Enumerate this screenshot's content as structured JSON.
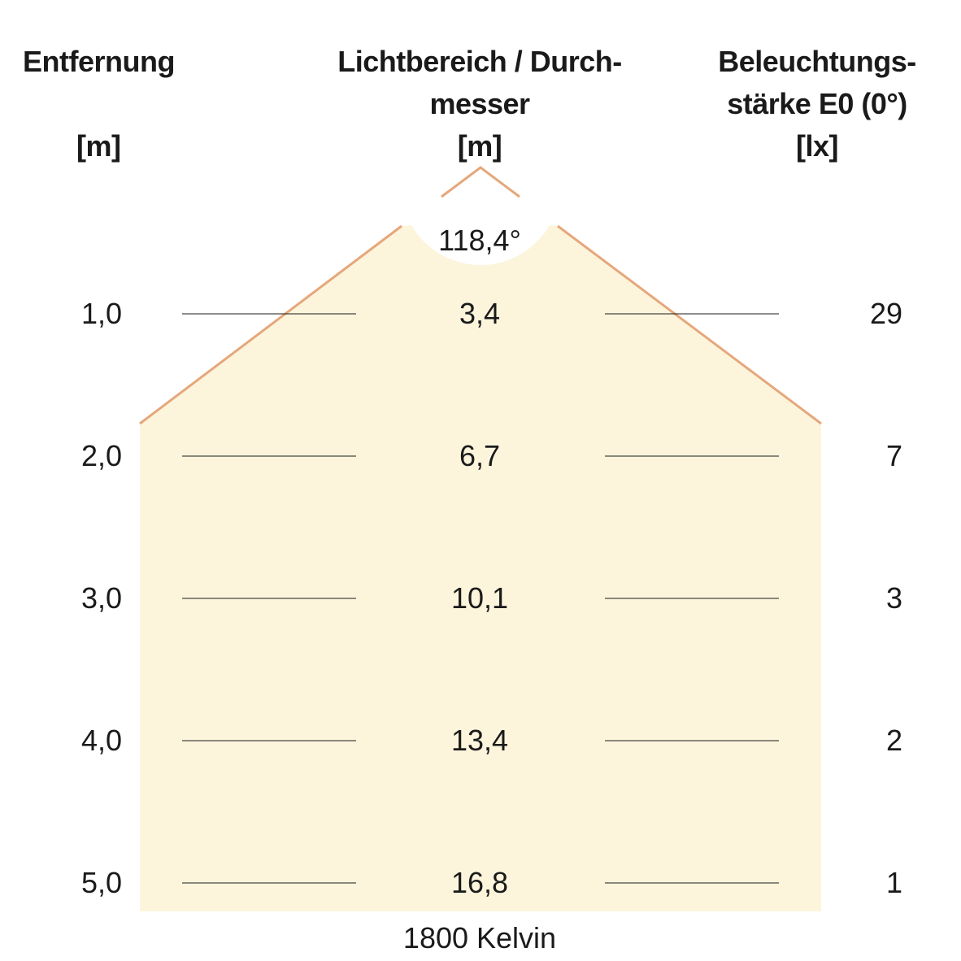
{
  "headers": {
    "distance": {
      "lines": [
        "Entfernung"
      ],
      "unit": "[m]"
    },
    "diameter": {
      "lines": [
        "Lichtbereich / Durch-",
        "messer",
        "[m]"
      ]
    },
    "illuminance": {
      "lines": [
        "Beleuchtungs-",
        "stärke E0 (0°)",
        "[lx]"
      ]
    }
  },
  "beam_angle": "118,4°",
  "rows": [
    {
      "distance": "1,0",
      "diameter": "3,4",
      "lux": "29"
    },
    {
      "distance": "2,0",
      "diameter": "6,7",
      "lux": "7"
    },
    {
      "distance": "3,0",
      "diameter": "10,1",
      "lux": "3"
    },
    {
      "distance": "4,0",
      "diameter": "13,4",
      "lux": "2"
    },
    {
      "distance": "5,0",
      "diameter": "16,8",
      "lux": "1"
    }
  ],
  "color_temperature": "1800 Kelvin",
  "colors": {
    "light_fill": "#fcf5dc",
    "beam_edge": "#e6a77b",
    "rule": "#1a1a1a"
  }
}
